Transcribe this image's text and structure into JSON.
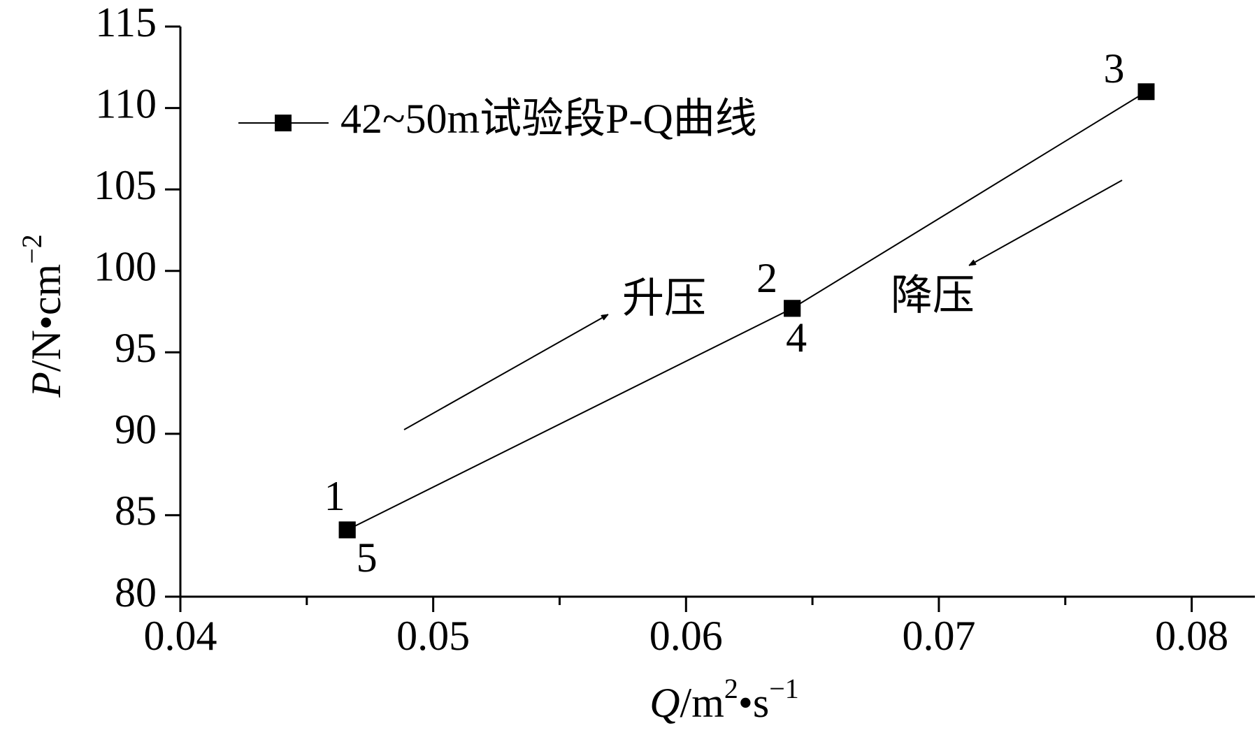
{
  "chart_data": {
    "type": "line",
    "xlabel": [
      "Q",
      "/m",
      "2",
      "•s",
      "−1"
    ],
    "ylabel": [
      "P",
      "/N•cm",
      "−2"
    ],
    "x": [
      0.0466,
      0.0642,
      0.0782,
      0.0642,
      0.0466
    ],
    "series": [
      {
        "name": "42~50m试验段P-Q曲线",
        "color": "#000000",
        "values": [
          84.1,
          97.7,
          111.0,
          97.7,
          84.1
        ],
        "point_labels": [
          "1",
          "2",
          "3",
          "4",
          "5"
        ]
      }
    ],
    "annotations": [
      "升压",
      "降压"
    ],
    "xlim": [
      0.04,
      0.0825
    ],
    "xticks": [
      0.04,
      0.05,
      0.06,
      0.07,
      0.08
    ],
    "xminorticks": [
      0.045,
      0.055,
      0.065,
      0.075
    ],
    "ylim": [
      80,
      115
    ],
    "yticks": [
      80,
      85,
      90,
      95,
      100,
      105,
      110,
      115
    ],
    "legend": "upper left",
    "grid": false
  }
}
